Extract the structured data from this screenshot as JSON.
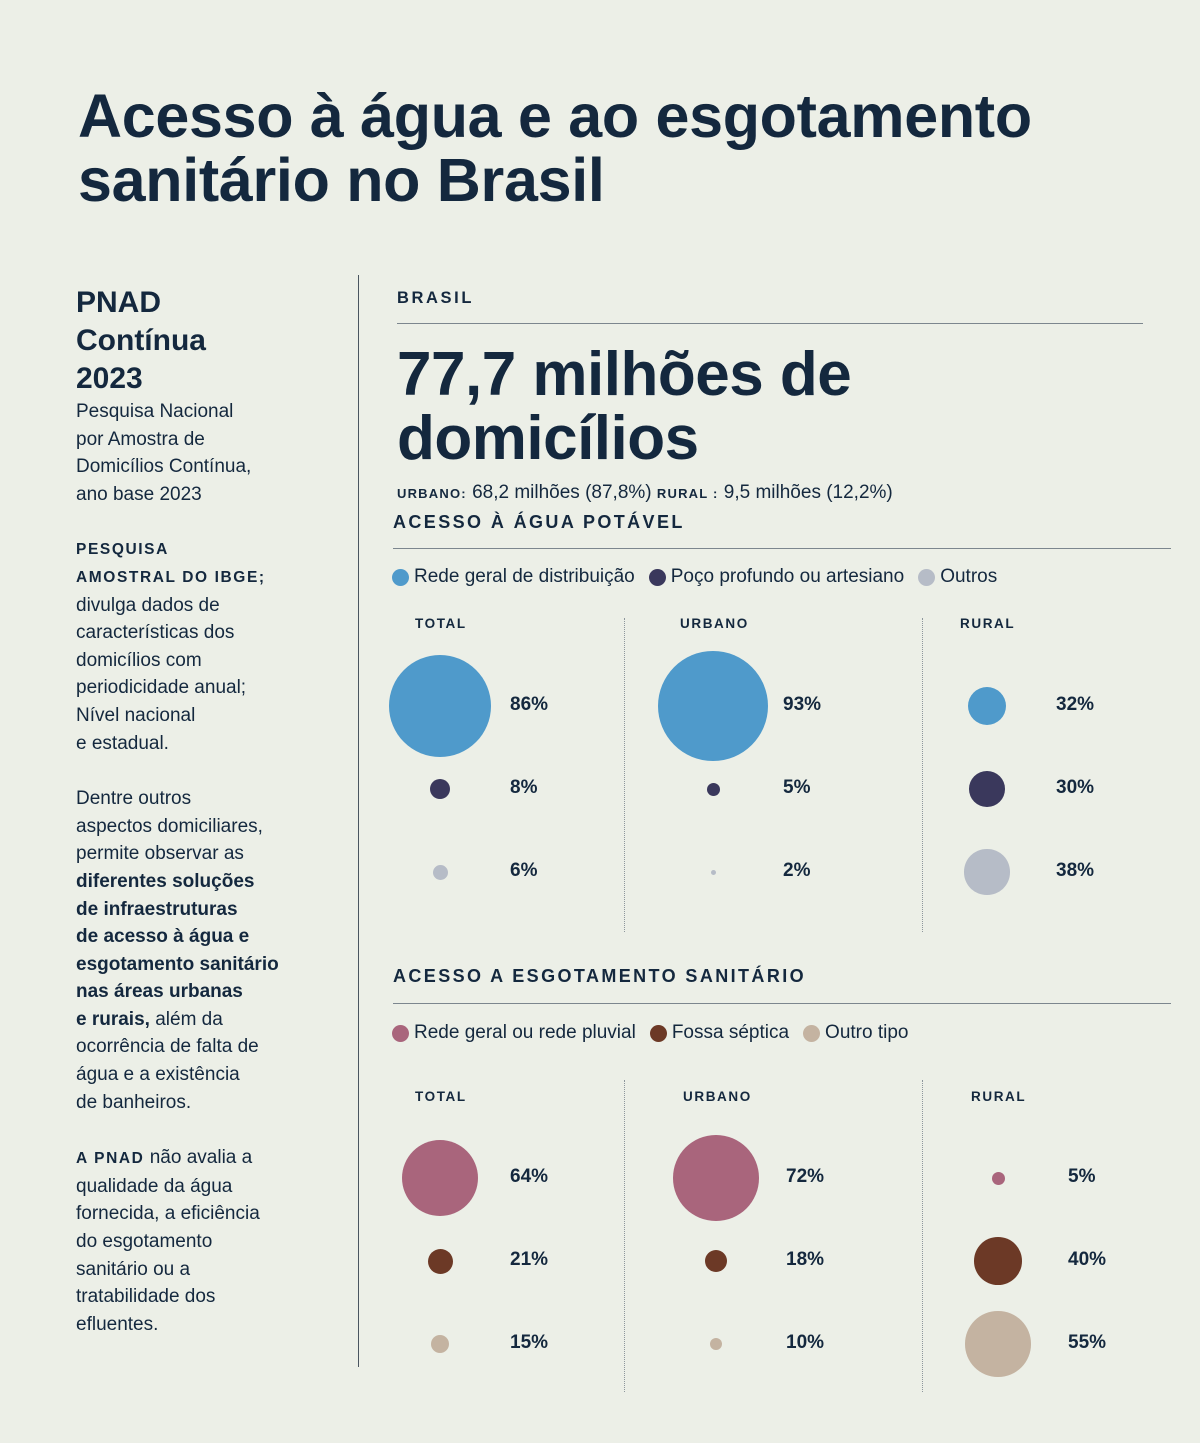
{
  "title": "Acesso à água e ao esgotamento sanitário no Brasil",
  "sidebar": {
    "heading_lines": [
      "PNAD",
      "Contínua",
      "2023"
    ],
    "subtitle_lines": [
      "Pesquisa Nacional",
      "por Amostra de",
      "Domicílios Contínua,",
      "ano base 2023"
    ],
    "p1_caps_lines": [
      "PESQUISA",
      "AMOSTRAL DO IBGE;"
    ],
    "p1_lines": [
      "divulga dados de",
      "características dos",
      "domicílios com",
      "periodicidade anual;",
      "Nível nacional",
      "e estadual."
    ],
    "p2_lines_regular": [
      "Dentre outros",
      "aspectos domiciliares,",
      "permite observar as"
    ],
    "p2_lines_bold": [
      "diferentes soluções",
      "de infraestruturas",
      "de acesso à água e",
      "esgotamento sanitário",
      "nas áreas urbanas"
    ],
    "p2_bold_tail": "e rurais,",
    "p2_after_bold": " além da",
    "p2_lines_end": [
      "ocorrência de falta de",
      "água e a existência",
      "de banheiros."
    ],
    "p3_caps": "A PNAD",
    "p3_first": " não avalia a",
    "p3_lines": [
      "qualidade da água",
      "fornecida, a eficiência",
      "do esgotamento",
      "sanitário ou a",
      "tratabilidade dos",
      "efluentes."
    ]
  },
  "main": {
    "kicker": "BRASIL",
    "headline_lines": [
      "77,7 milhões de",
      "domicílios"
    ],
    "urban_key": "URBANO:",
    "urban_value": " 68,2 milhões (87,8%) ",
    "rural_key": "RURAL :",
    "rural_value": " 9,5 milhões (12,2%)"
  },
  "chart_data": [
    {
      "type": "bubble",
      "title": "ACESSO À ÁGUA POTÁVEL",
      "categories": [
        "TOTAL",
        "URBANO",
        "RURAL"
      ],
      "legend": [
        {
          "label": "Rede geral de distribuição",
          "color": "#4f9acb"
        },
        {
          "label": "Poço profundo ou artesiano",
          "color": "#3a385c"
        },
        {
          "label": "Outros",
          "color": "#b6bcc7"
        }
      ],
      "series": [
        {
          "name": "Rede geral de distribuição",
          "values": [
            86,
            93,
            32
          ]
        },
        {
          "name": "Poço profundo ou artesiano",
          "values": [
            8,
            5,
            30
          ]
        },
        {
          "name": "Outros",
          "values": [
            6,
            2,
            38
          ]
        }
      ],
      "labels": [
        [
          "86%",
          "8%",
          "6%"
        ],
        [
          "93%",
          "5%",
          "2%"
        ],
        [
          "32%",
          "30%",
          "38%"
        ]
      ],
      "unit": "%",
      "legend_position": "top-left"
    },
    {
      "type": "bubble",
      "title": "ACESSO A ESGOTAMENTO SANITÁRIO",
      "categories": [
        "TOTAL",
        "URBANO",
        "RURAL"
      ],
      "legend": [
        {
          "label": "Rede geral ou rede pluvial",
          "color": "#a9657c"
        },
        {
          "label": "Fossa séptica",
          "color": "#6c3926"
        },
        {
          "label": "Outro tipo",
          "color": "#c4b3a1"
        }
      ],
      "series": [
        {
          "name": "Rede geral ou rede pluvial",
          "values": [
            64,
            72,
            5
          ]
        },
        {
          "name": "Fossa séptica",
          "values": [
            21,
            18,
            40
          ]
        },
        {
          "name": "Outro tipo",
          "values": [
            15,
            10,
            55
          ]
        }
      ],
      "labels": [
        [
          "64%",
          "21%",
          "15%"
        ],
        [
          "72%",
          "18%",
          "10%"
        ],
        [
          "5%",
          "40%",
          "55%"
        ]
      ],
      "unit": "%",
      "legend_position": "top-left"
    }
  ]
}
